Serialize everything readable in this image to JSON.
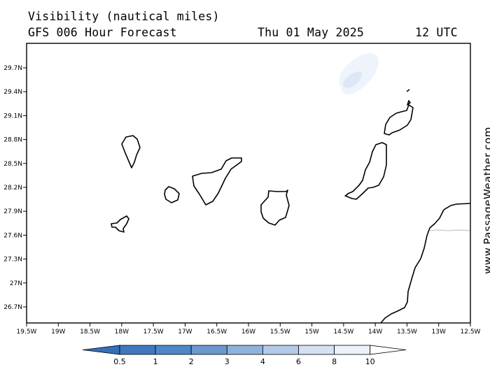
{
  "header": {
    "title": "Visibility (nautical miles)",
    "model": "GFS 006 Hour Forecast",
    "date": "Thu 01 May 2025",
    "time": "12 UTC"
  },
  "credit": "www.PassageWeather.com",
  "axes": {
    "lat_labels": [
      "29.7N",
      "29.4N",
      "29.1N",
      "28.8N",
      "28.5N",
      "28.2N",
      "27.9N",
      "27.6N",
      "27.3N",
      "27N",
      "26.7N"
    ],
    "lon_labels": [
      "19.5W",
      "19W",
      "18.5W",
      "18W",
      "17.5W",
      "17W",
      "16.5W",
      "16W",
      "15.5W",
      "15W",
      "14.5W",
      "14W",
      "13.5W",
      "13W",
      "12.5W"
    ]
  },
  "legend": {
    "labels": [
      "0.5",
      "1",
      "2",
      "3",
      "4",
      "6",
      "8",
      "10"
    ],
    "colors": [
      "#3f78be",
      "#4f86c8",
      "#6a98cf",
      "#8fb2dc",
      "#b3cbe8",
      "#d3e1f2",
      "#ebf2fa",
      "#ffffff"
    ],
    "left_arrow_color": "#3470b8",
    "right_arrow_color": "#ffffff"
  },
  "overlay_colors": {
    "fog_outer": "#eef4fc",
    "fog_inner": "#dde8f7",
    "coast": "#000000",
    "border": "#c8c8c8"
  }
}
